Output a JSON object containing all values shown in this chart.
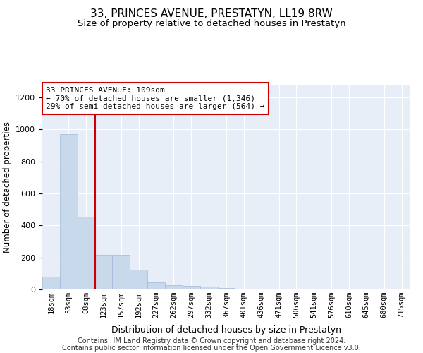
{
  "title": "33, PRINCES AVENUE, PRESTATYN, LL19 8RW",
  "subtitle": "Size of property relative to detached houses in Prestatyn",
  "xlabel": "Distribution of detached houses by size in Prestatyn",
  "ylabel": "Number of detached properties",
  "bin_labels": [
    "18sqm",
    "53sqm",
    "88sqm",
    "123sqm",
    "157sqm",
    "192sqm",
    "227sqm",
    "262sqm",
    "297sqm",
    "332sqm",
    "367sqm",
    "401sqm",
    "436sqm",
    "471sqm",
    "506sqm",
    "541sqm",
    "576sqm",
    "610sqm",
    "645sqm",
    "680sqm",
    "715sqm"
  ],
  "bar_heights": [
    80,
    970,
    455,
    215,
    215,
    125,
    45,
    25,
    20,
    18,
    10,
    0,
    0,
    0,
    0,
    0,
    0,
    0,
    0,
    0,
    0
  ],
  "bar_color": "#c9d9ec",
  "bar_edge_color": "#a0b8d8",
  "red_line_x": 2.5,
  "annotation_line1": "33 PRINCES AVENUE: 109sqm",
  "annotation_line2": "← 70% of detached houses are smaller (1,346)",
  "annotation_line3": "29% of semi-detached houses are larger (564) →",
  "annotation_box_color": "#ffffff",
  "annotation_box_edge": "#cc0000",
  "red_line_color": "#cc0000",
  "ylim": [
    0,
    1280
  ],
  "yticks": [
    0,
    200,
    400,
    600,
    800,
    1000,
    1200
  ],
  "footer_line1": "Contains HM Land Registry data © Crown copyright and database right 2024.",
  "footer_line2": "Contains public sector information licensed under the Open Government Licence v3.0.",
  "bg_color": "#e8eef8",
  "grid_color": "#ffffff"
}
